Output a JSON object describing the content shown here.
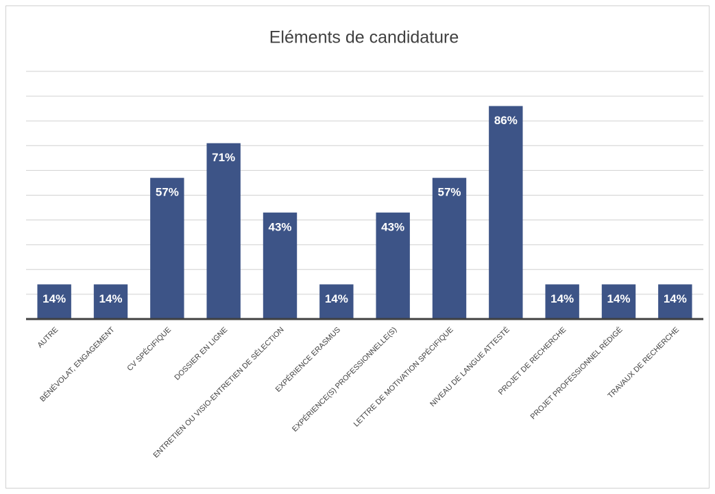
{
  "chart_data": {
    "type": "bar",
    "title": "Eléments de candidature",
    "categories": [
      "AUTRE",
      "BÉNÉVOLAT, ENGAGEMENT",
      "CV SPÉCIFIQUE",
      "DOSSIER EN LIGNE",
      "ENTRETIEN OU VISIO-ENTRETIEN DE SÉLECTION",
      "EXPÉRIENCE ERASMUS",
      "EXPÉRIENCE(S) PROFESSIONNELLE(S)",
      "LETTRE DE MOTIVATION SPÉCIFIQUE",
      "NIVEAU DE LANGUE ATTESTÉ",
      "PROJET DE RECHERCHE",
      "PROJET PROFESSIONNEL RÉDIGÉ",
      "TRAVAUX DE RECHERCHE"
    ],
    "values": [
      14,
      14,
      57,
      71,
      43,
      14,
      43,
      57,
      86,
      14,
      14,
      14
    ],
    "value_labels": [
      "14%",
      "14%",
      "57%",
      "71%",
      "43%",
      "14%",
      "43%",
      "57%",
      "86%",
      "14%",
      "14%",
      "14%"
    ],
    "color": "#3d5487",
    "ylim": [
      0,
      100
    ],
    "yticks": [
      0,
      10,
      20,
      30,
      40,
      50,
      60,
      70,
      80,
      90,
      100
    ],
    "grid": true
  }
}
